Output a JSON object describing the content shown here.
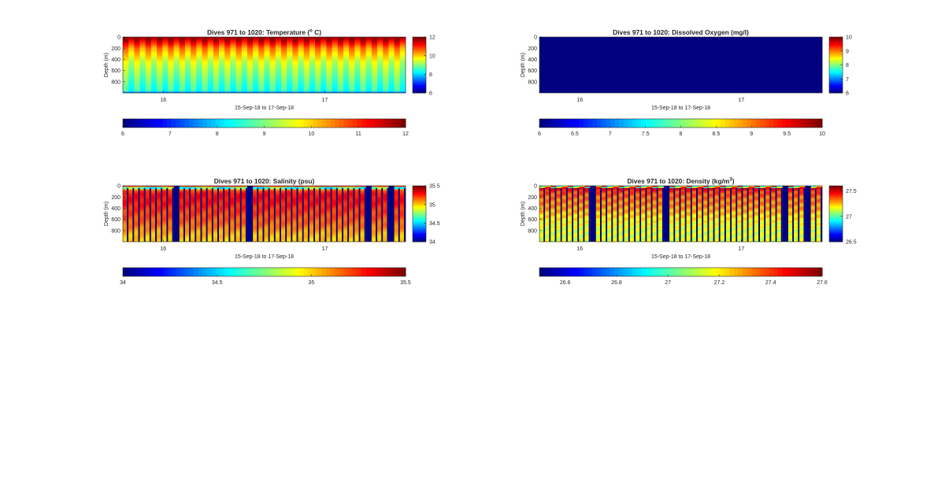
{
  "colors": {
    "background": "#ffffff",
    "axes_text": "#262626",
    "axes_line": "#262626"
  },
  "colormap": "jet",
  "chart_data": [
    {
      "type": "heatmap",
      "id": "temperature",
      "title": "Dives 971 to 1020: Temperature (° C)",
      "title_parts": [
        "Dives 971 to 1020: Temperature (",
        "o",
        " C)"
      ],
      "title_sup": true,
      "xlabel": "15-Sep-18 to 17-Sep-18",
      "ylabel": "Depth (m)",
      "x_ticks": [
        "16",
        "17"
      ],
      "x_tick_positions": [
        16,
        17
      ],
      "xlim": [
        15.75,
        17.5
      ],
      "y_ticks": [
        "0",
        "200",
        "400",
        "600",
        "800"
      ],
      "y_tick_values": [
        0,
        200,
        400,
        600,
        800
      ],
      "ylim": [
        0,
        1000
      ],
      "y_reversed": true,
      "clim": [
        6,
        12
      ],
      "colorbar_ticks": [
        "6",
        "8",
        "10",
        "12"
      ],
      "colorbar_tick_values": [
        6,
        8,
        10,
        12
      ],
      "horizontal_colorbar_ticks": [
        "6",
        "7",
        "8",
        "9",
        "10",
        "11",
        "12"
      ],
      "horizontal_colorbar_tick_values": [
        6,
        7,
        8,
        9,
        10,
        11,
        12
      ],
      "dives": 50,
      "pattern": "temp",
      "profile_depths": [
        0,
        50,
        100,
        200,
        300,
        400,
        500,
        600,
        700,
        800,
        900,
        1000
      ],
      "profile_values": [
        11.9,
        11.6,
        11.2,
        10.4,
        10.0,
        9.6,
        9.3,
        9.1,
        8.9,
        8.7,
        8.5,
        8.4
      ],
      "gaps": []
    },
    {
      "type": "heatmap",
      "id": "oxygen",
      "title": "Dives 971 to 1020: Dissolved Oxygen (mg/l)",
      "title_parts": [
        "Dives 971 to 1020: Dissolved Oxygen (mg/l)"
      ],
      "title_sup": false,
      "xlabel": "15-Sep-18 to 17-Sep-18",
      "ylabel": "Depth (m)",
      "x_ticks": [
        "16",
        "17"
      ],
      "x_tick_positions": [
        16,
        17
      ],
      "xlim": [
        15.75,
        17.5
      ],
      "y_ticks": [
        "0",
        "200",
        "400",
        "600",
        "800"
      ],
      "y_tick_values": [
        0,
        200,
        400,
        600,
        800
      ],
      "ylim": [
        0,
        1000
      ],
      "y_reversed": true,
      "clim": [
        6,
        10
      ],
      "colorbar_ticks": [
        "6",
        "7",
        "8",
        "9",
        "10"
      ],
      "colorbar_tick_values": [
        6,
        7,
        8,
        9,
        10
      ],
      "horizontal_colorbar_ticks": [
        "6",
        "6.5",
        "7",
        "7.5",
        "8",
        "8.5",
        "9",
        "9.5",
        "10"
      ],
      "horizontal_colorbar_tick_values": [
        6,
        6.5,
        7,
        7.5,
        8,
        8.5,
        9,
        9.5,
        10
      ],
      "dives": 50,
      "pattern": "uniform",
      "uniform_value": 6,
      "gaps": []
    },
    {
      "type": "heatmap",
      "id": "salinity",
      "title": "Dives 971 to 1020: Salinity (psu)",
      "title_parts": [
        "Dives 971 to 1020: Salinity (psu)"
      ],
      "title_sup": false,
      "xlabel": "15-Sep-18 to 17-Sep-18",
      "ylabel": "Depth (m)",
      "x_ticks": [
        "16",
        "17"
      ],
      "x_tick_positions": [
        16,
        17
      ],
      "xlim": [
        15.75,
        17.5
      ],
      "y_ticks": [
        "0",
        "200",
        "400",
        "600",
        "800"
      ],
      "y_tick_values": [
        0,
        200,
        400,
        600,
        800
      ],
      "ylim": [
        0,
        1000
      ],
      "y_reversed": true,
      "clim": [
        34,
        35.5
      ],
      "colorbar_ticks": [
        "34",
        "34.5",
        "35",
        "35.5"
      ],
      "colorbar_tick_values": [
        34,
        34.5,
        35,
        35.5
      ],
      "horizontal_colorbar_ticks": [
        "34",
        "34.5",
        "35",
        "35.5"
      ],
      "horizontal_colorbar_tick_values": [
        34,
        34.5,
        35,
        35.5
      ],
      "dives": 50,
      "pattern": "sal",
      "profile_depths": [
        0,
        30,
        80,
        150,
        250,
        400,
        550,
        700,
        850,
        1000
      ],
      "profile_values": [
        35.5,
        34.7,
        35.2,
        35.3,
        35.3,
        35.25,
        35.2,
        35.15,
        35.05,
        35.0
      ],
      "gaps": [
        9,
        22,
        43,
        47
      ]
    },
    {
      "type": "heatmap",
      "id": "density",
      "title": "Dives 971 to 1020: Density (kg/m3)",
      "title_parts": [
        "Dives 971 to 1020: Density (kg/m",
        "3",
        ")"
      ],
      "title_sup": true,
      "xlabel": "15-Sep-18 to 17-Sep-18",
      "ylabel": "Depth (m)",
      "x_ticks": [
        "16",
        "17"
      ],
      "x_tick_positions": [
        16,
        17
      ],
      "xlim": [
        15.75,
        17.5
      ],
      "y_ticks": [
        "0",
        "200",
        "400",
        "600",
        "800"
      ],
      "y_tick_values": [
        0,
        200,
        400,
        600,
        800
      ],
      "ylim": [
        0,
        1000
      ],
      "y_reversed": true,
      "clim": [
        26.5,
        27.6
      ],
      "colorbar_ticks": [
        "26.5",
        "27",
        "27.5"
      ],
      "colorbar_tick_values": [
        26.5,
        27,
        27.5
      ],
      "horizontal_colorbar_ticks": [
        "26.6",
        "26.8",
        "27",
        "27.2",
        "27.4",
        "27.6"
      ],
      "horizontal_colorbar_tick_values": [
        26.6,
        26.8,
        27,
        27.2,
        27.4,
        27.6
      ],
      "dives": 50,
      "pattern": "dens",
      "profile_depths": [
        0,
        50,
        100,
        200,
        400,
        600,
        800,
        1000
      ],
      "profile_values": [
        27.0,
        27.5,
        27.4,
        27.35,
        27.3,
        27.2,
        27.15,
        27.15
      ],
      "gaps": [
        9,
        22,
        43,
        47
      ]
    }
  ]
}
